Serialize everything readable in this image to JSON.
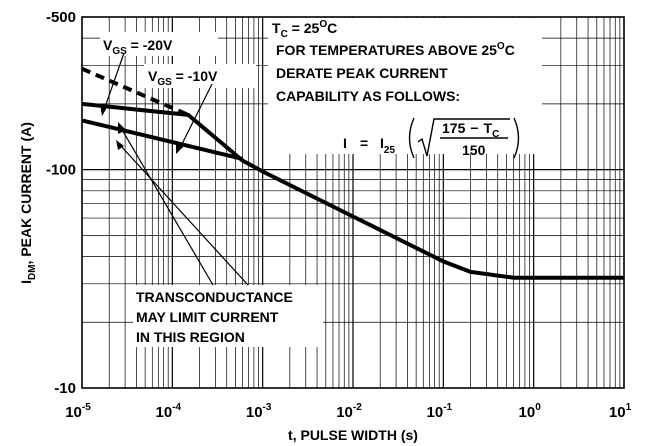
{
  "chart_data": {
    "type": "line",
    "x_scale": "log",
    "y_scale": "log",
    "xlim": [
      1e-05,
      10
    ],
    "ylim": [
      -10,
      -500
    ],
    "grid": true,
    "xlabel": "t, PULSE WIDTH (s)",
    "ylabel": {
      "main": "I",
      "sub": "DM",
      "rest": ", PEAK CURRENT (A)"
    },
    "xticks": [
      {
        "value": 1e-05,
        "base": "10",
        "exp": "-5"
      },
      {
        "value": 0.0001,
        "base": "10",
        "exp": "-4"
      },
      {
        "value": 0.001,
        "base": "10",
        "exp": "-3"
      },
      {
        "value": 0.01,
        "base": "10",
        "exp": "-2"
      },
      {
        "value": 0.1,
        "base": "10",
        "exp": "-1"
      },
      {
        "value": 1,
        "base": "10",
        "exp": "0"
      },
      {
        "value": 10,
        "base": "10",
        "exp": "1"
      }
    ],
    "yticks": [
      {
        "value": -500,
        "label": "-500"
      },
      {
        "value": -100,
        "label": "-100"
      },
      {
        "value": -10,
        "label": "-10"
      }
    ],
    "series": [
      {
        "name": "VGS = -20V",
        "style": "solid",
        "points": [
          [
            1e-05,
            -200
          ],
          [
            0.00015,
            -178
          ],
          [
            0.0006,
            -110
          ],
          [
            0.001,
            -98
          ],
          [
            0.01,
            -61
          ],
          [
            0.1,
            -38
          ],
          [
            0.2,
            -34
          ],
          [
            0.6,
            -32
          ],
          [
            10,
            -32
          ]
        ]
      },
      {
        "name": "VGS = -20V",
        "style": "dashed",
        "points": [
          [
            1e-05,
            -290
          ],
          [
            0.00015,
            -178
          ]
        ]
      },
      {
        "name": "VGS = -10V",
        "style": "solid",
        "points": [
          [
            1e-05,
            -168
          ],
          [
            0.0006,
            -112
          ]
        ]
      }
    ],
    "annotations": {
      "vgs20": {
        "main": "V",
        "sub": "GS",
        "rest": " = -20V"
      },
      "vgs10": {
        "main": "V",
        "sub": "GS",
        "rest": " = -10V"
      },
      "tc": {
        "main": "T",
        "sub": "C",
        "mid": " = 25",
        "sup": "O",
        "end": "C"
      },
      "derate1": {
        "text": "FOR TEMPERATURES ABOVE 25",
        "sup": "O",
        "end": "C"
      },
      "derate2": "DERATE PEAK CURRENT",
      "derate3": "CAPABILITY AS FOLLOWS:",
      "formula": {
        "lhs": "I",
        "eq": "=",
        "i": "I",
        "sub": "25",
        "num_a": "175",
        "minus": "−",
        "num_t": "T",
        "num_sub": "C",
        "den": "150"
      },
      "trans1": "TRANSCONDUCTANCE",
      "trans2": "MAY LIMIT CURRENT",
      "trans3": "IN THIS REGION"
    }
  }
}
